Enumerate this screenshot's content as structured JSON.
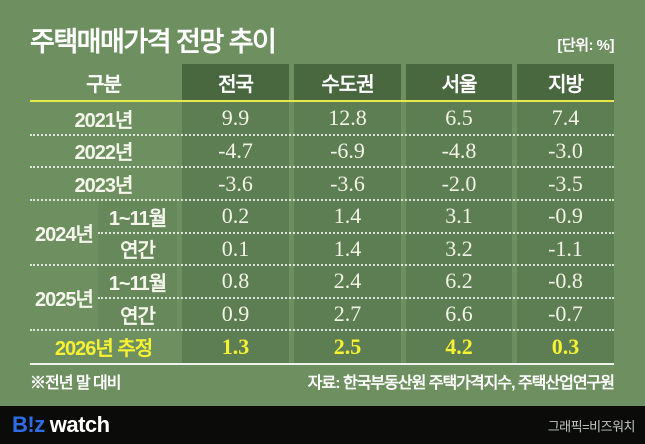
{
  "title": "주택매매가격 전망 추이",
  "unit_label": "[단위: %]",
  "table": {
    "headers": [
      "구분",
      "전국",
      "수도권",
      "서울",
      "지방"
    ],
    "rows": [
      {
        "type": "simple",
        "label": "2021년",
        "values": [
          "9.9",
          "12.8",
          "6.5",
          "7.4"
        ]
      },
      {
        "type": "simple",
        "label": "2022년",
        "values": [
          "-4.7",
          "-6.9",
          "-4.8",
          "-3.0"
        ]
      },
      {
        "type": "simple",
        "label": "2023년",
        "values": [
          "-3.6",
          "-3.6",
          "-2.0",
          "-3.5"
        ]
      },
      {
        "type": "group",
        "label": "2024년",
        "subrows": [
          {
            "sublabel": "1~11월",
            "values": [
              "0.2",
              "1.4",
              "3.1",
              "-0.9"
            ]
          },
          {
            "sublabel": "연간",
            "values": [
              "0.1",
              "1.4",
              "3.2",
              "-1.1"
            ]
          }
        ]
      },
      {
        "type": "group",
        "label": "2025년",
        "subrows": [
          {
            "sublabel": "1~11월",
            "values": [
              "0.8",
              "2.4",
              "6.2",
              "-0.8"
            ]
          },
          {
            "sublabel": "연간",
            "values": [
              "0.9",
              "2.7",
              "6.6",
              "-0.7"
            ]
          }
        ]
      },
      {
        "type": "highlight",
        "label": "2026년 추정",
        "values": [
          "1.3",
          "2.5",
          "4.2",
          "0.3"
        ]
      }
    ]
  },
  "footnotes": {
    "left": "※전년 말 대비",
    "right": "자료: 한국부동산원 주택가격지수, 주택산업연구원"
  },
  "footer": {
    "logo_biz": "B!z",
    "logo_watch": "watch",
    "credit": "그래픽=비즈워치"
  },
  "colors": {
    "background": "#6e9060",
    "value_column": "#5d7d52",
    "header_cell": "#496840",
    "sub_label_cell": "#67885a",
    "highlight_text": "#f7f233",
    "header_underline": "#e8e74e",
    "footer_bar": "#0b0c0a",
    "logo_blue": "#2e6be5",
    "body_text": "#f3f4e8"
  },
  "chart_data": {
    "type": "table",
    "title": "주택매매가격 전망 추이",
    "unit": "%",
    "columns": [
      "전국",
      "수도권",
      "서울",
      "지방"
    ],
    "rows": [
      {
        "label": "2021년",
        "values": [
          9.9,
          12.8,
          6.5,
          7.4
        ]
      },
      {
        "label": "2022년",
        "values": [
          -4.7,
          -6.9,
          -4.8,
          -3.0
        ]
      },
      {
        "label": "2023년",
        "values": [
          -3.6,
          -3.6,
          -2.0,
          -3.5
        ]
      },
      {
        "label": "2024년 1~11월",
        "values": [
          0.2,
          1.4,
          3.1,
          -0.9
        ]
      },
      {
        "label": "2024년 연간",
        "values": [
          0.1,
          1.4,
          3.2,
          -1.1
        ]
      },
      {
        "label": "2025년 1~11월",
        "values": [
          0.8,
          2.4,
          6.2,
          -0.8
        ]
      },
      {
        "label": "2025년 연간",
        "values": [
          0.9,
          2.7,
          6.6,
          -0.7
        ]
      },
      {
        "label": "2026년 추정",
        "values": [
          1.3,
          2.5,
          4.2,
          0.3
        ]
      }
    ],
    "note": "※전년 말 대비",
    "source": "자료: 한국부동산원 주택가격지수, 주택산업연구원"
  }
}
